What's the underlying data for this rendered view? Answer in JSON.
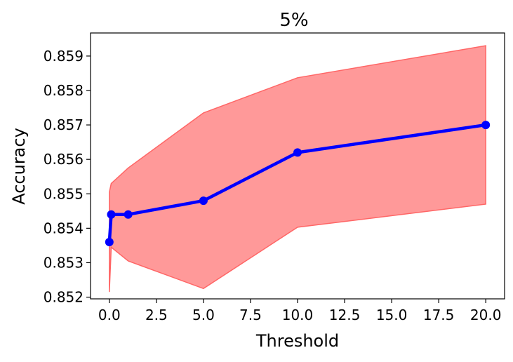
{
  "chart_data": {
    "type": "line",
    "title": "5%",
    "xlabel": "Threshold",
    "ylabel": "Accuracy",
    "xlim": [
      -1.0,
      21.0
    ],
    "ylim": [
      0.85195,
      0.85967
    ],
    "xticks": [
      0.0,
      2.5,
      5.0,
      7.5,
      10.0,
      12.5,
      15.0,
      17.5,
      20.0
    ],
    "xtick_labels": [
      "0.0",
      "2.5",
      "5.0",
      "7.5",
      "10.0",
      "12.5",
      "15.0",
      "17.5",
      "20.0"
    ],
    "yticks": [
      0.852,
      0.853,
      0.854,
      0.855,
      0.856,
      0.857,
      0.858,
      0.859
    ],
    "ytick_labels": [
      "0.852",
      "0.853",
      "0.854",
      "0.855",
      "0.856",
      "0.857",
      "0.858",
      "0.859"
    ],
    "grid": false,
    "series": [
      {
        "x": [
          0.0,
          0.1,
          1.0,
          5.0,
          10.0,
          20.0
        ],
        "y": [
          0.8536,
          0.8544,
          0.8544,
          0.8548,
          0.8562,
          0.857
        ],
        "color": "#0000ff"
      }
    ],
    "band": {
      "x": [
        0.0,
        0.1,
        1.0,
        5.0,
        10.0,
        20.0
      ],
      "lower": [
        0.85215,
        0.85345,
        0.85305,
        0.85225,
        0.85403,
        0.8547
      ],
      "upper": [
        0.85505,
        0.8553,
        0.85575,
        0.85735,
        0.85837,
        0.8593
      ],
      "fill_color": "#ff9999",
      "edge_color": "#ff6666"
    }
  }
}
